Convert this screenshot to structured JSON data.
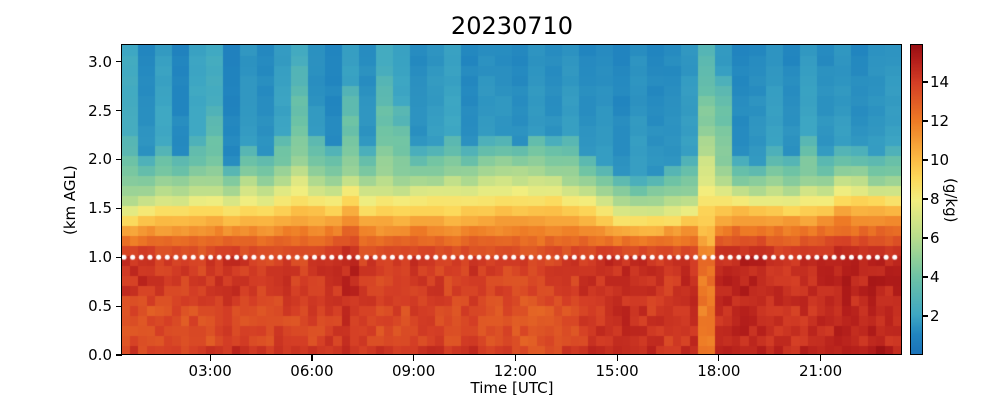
{
  "figure": {
    "background": "#ffffff",
    "accent_dot_color": "#ffffff"
  },
  "chart": {
    "title": "20230710",
    "xlabel": "Time [UTC]",
    "ylabel": "(km AGL)",
    "x_ticks": [
      {
        "hour": 3,
        "label": "03:00"
      },
      {
        "hour": 6,
        "label": "06:00"
      },
      {
        "hour": 9,
        "label": "09:00"
      },
      {
        "hour": 12,
        "label": "12:00"
      },
      {
        "hour": 15,
        "label": "15:00"
      },
      {
        "hour": 18,
        "label": "18:00"
      },
      {
        "hour": 21,
        "label": "21:00"
      }
    ],
    "y_ticks": [
      {
        "km": 0.0,
        "label": "0.0"
      },
      {
        "km": 0.5,
        "label": "0.5"
      },
      {
        "km": 1.0,
        "label": "1.0"
      },
      {
        "km": 1.5,
        "label": "1.5"
      },
      {
        "km": 2.0,
        "label": "2.0"
      },
      {
        "km": 2.5,
        "label": "2.5"
      },
      {
        "km": 3.0,
        "label": "3.0"
      }
    ],
    "colorbar": {
      "label": "(g/kg)",
      "ticks": [
        {
          "value": 2,
          "label": "2"
        },
        {
          "value": 4,
          "label": "4"
        },
        {
          "value": 6,
          "label": "6"
        },
        {
          "value": 8,
          "label": "8"
        },
        {
          "value": 10,
          "label": "10"
        },
        {
          "value": 12,
          "label": "12"
        },
        {
          "value": 14,
          "label": "14"
        }
      ],
      "vmin": 0,
      "vmax": 15.9,
      "colormap_stops": [
        [
          0.0,
          "#1b73b9"
        ],
        [
          0.065,
          "#2185bf"
        ],
        [
          0.13,
          "#3fa8c3"
        ],
        [
          0.25,
          "#6ec3a5"
        ],
        [
          0.38,
          "#b9dd8c"
        ],
        [
          0.5,
          "#f2ee7f"
        ],
        [
          0.57,
          "#fcd95b"
        ],
        [
          0.63,
          "#fbbc45"
        ],
        [
          0.755,
          "#ee7b25"
        ],
        [
          0.88,
          "#d43e25"
        ],
        [
          0.95,
          "#b51f1b"
        ],
        [
          1.0,
          "#9a1013"
        ]
      ]
    }
  },
  "chart_data": {
    "type": "heatmap",
    "title": "20230710",
    "xlabel": "Time [UTC]",
    "ylabel": "(km AGL)",
    "units_label": "(g/kg)",
    "xlim_hours": [
      0.4,
      23.4
    ],
    "ylim_km": [
      0.0,
      3.17
    ],
    "n_cols": 46,
    "n_rows": 31,
    "x_start_hour": 0.4,
    "x_step_hours": 0.5,
    "vmin": 0,
    "vmax": 15.9,
    "dotted_line_km": 1.0,
    "profile_anchors": {
      "orange_gkg": 10.8,
      "green_gkg": 5.2,
      "blue_gkg": 2.7
    },
    "column_profile_keys": [
      "surface_gkg",
      "peak_gkg",
      "red_top_km",
      "yellow_top_km",
      "plume_top_km",
      "upper_air_gkg"
    ],
    "column_profiles": [
      [
        13.6,
        14.3,
        1.28,
        1.62,
        2.25,
        2.4
      ],
      [
        13.4,
        14.5,
        1.3,
        1.7,
        2.0,
        1.5
      ],
      [
        13.5,
        14.2,
        1.3,
        1.75,
        2.15,
        2.1
      ],
      [
        13.4,
        14.0,
        1.33,
        1.72,
        2.05,
        1.3
      ],
      [
        13.6,
        13.9,
        1.34,
        1.78,
        2.2,
        2.2
      ],
      [
        13.5,
        14.2,
        1.36,
        1.76,
        2.6,
        2.4
      ],
      [
        13.9,
        14.4,
        1.34,
        1.7,
        1.95,
        1.2
      ],
      [
        13.7,
        14.0,
        1.36,
        1.84,
        2.15,
        1.8
      ],
      [
        13.5,
        13.8,
        1.34,
        1.78,
        2.05,
        1.5
      ],
      [
        13.8,
        14.1,
        1.38,
        1.84,
        2.3,
        2.0
      ],
      [
        13.6,
        13.9,
        1.4,
        1.98,
        3.0,
        2.3
      ],
      [
        13.8,
        14.2,
        1.38,
        1.84,
        2.3,
        1.6
      ],
      [
        14.0,
        14.4,
        1.4,
        1.78,
        2.1,
        1.3
      ],
      [
        14.3,
        14.8,
        1.48,
        1.88,
        2.75,
        1.9
      ],
      [
        13.8,
        14.0,
        1.36,
        1.78,
        2.1,
        1.6
      ],
      [
        13.6,
        13.9,
        1.34,
        1.84,
        2.9,
        2.4
      ],
      [
        13.7,
        14.0,
        1.36,
        1.8,
        2.55,
        2.1
      ],
      [
        13.9,
        14.2,
        1.38,
        1.82,
        2.1,
        1.5
      ],
      [
        13.7,
        14.0,
        1.36,
        1.84,
        2.15,
        1.8
      ],
      [
        13.5,
        13.8,
        1.35,
        1.88,
        2.25,
        2.1
      ],
      [
        13.8,
        14.1,
        1.38,
        1.84,
        2.1,
        1.4
      ],
      [
        13.6,
        13.9,
        1.36,
        1.9,
        2.2,
        1.7
      ],
      [
        13.4,
        13.7,
        1.38,
        1.94,
        2.25,
        1.6
      ],
      [
        13.2,
        13.8,
        1.4,
        1.92,
        2.15,
        1.4
      ],
      [
        13.0,
        13.6,
        1.38,
        1.94,
        2.3,
        1.7
      ],
      [
        13.3,
        13.9,
        1.4,
        1.9,
        2.2,
        1.5
      ],
      [
        13.6,
        14.0,
        1.38,
        1.84,
        2.25,
        1.8
      ],
      [
        14.0,
        14.3,
        1.36,
        1.78,
        2.05,
        1.5
      ],
      [
        14.3,
        14.5,
        1.3,
        1.7,
        1.95,
        1.7
      ],
      [
        14.5,
        14.6,
        1.26,
        1.62,
        1.85,
        1.4
      ],
      [
        14.4,
        14.5,
        1.24,
        1.58,
        1.8,
        1.8
      ],
      [
        14.2,
        14.4,
        1.26,
        1.6,
        1.85,
        1.5
      ],
      [
        14.0,
        14.2,
        1.28,
        1.62,
        1.9,
        1.6
      ],
      [
        14.3,
        14.5,
        1.3,
        1.64,
        2.0,
        1.9
      ],
      [
        11.9,
        12.1,
        1.12,
        2.25,
        3.17,
        2.3
      ],
      [
        14.6,
        14.8,
        1.38,
        1.88,
        2.85,
        1.8
      ],
      [
        14.8,
        15.0,
        1.43,
        1.74,
        2.0,
        1.4
      ],
      [
        14.6,
        14.9,
        1.43,
        1.72,
        1.95,
        1.6
      ],
      [
        14.4,
        14.6,
        1.4,
        1.76,
        2.1,
        1.9
      ],
      [
        14.2,
        14.5,
        1.38,
        1.74,
        2.0,
        1.5
      ],
      [
        14.5,
        14.7,
        1.4,
        1.8,
        2.3,
        2.0
      ],
      [
        14.7,
        14.9,
        1.43,
        1.76,
        2.05,
        1.6
      ],
      [
        14.8,
        15.0,
        1.48,
        1.86,
        2.15,
        1.8
      ],
      [
        14.6,
        14.8,
        1.46,
        1.84,
        2.1,
        1.5
      ],
      [
        14.8,
        15.0,
        1.48,
        1.78,
        2.05,
        1.7
      ],
      [
        14.5,
        14.8,
        1.46,
        1.8,
        2.1,
        1.9
      ]
    ]
  }
}
